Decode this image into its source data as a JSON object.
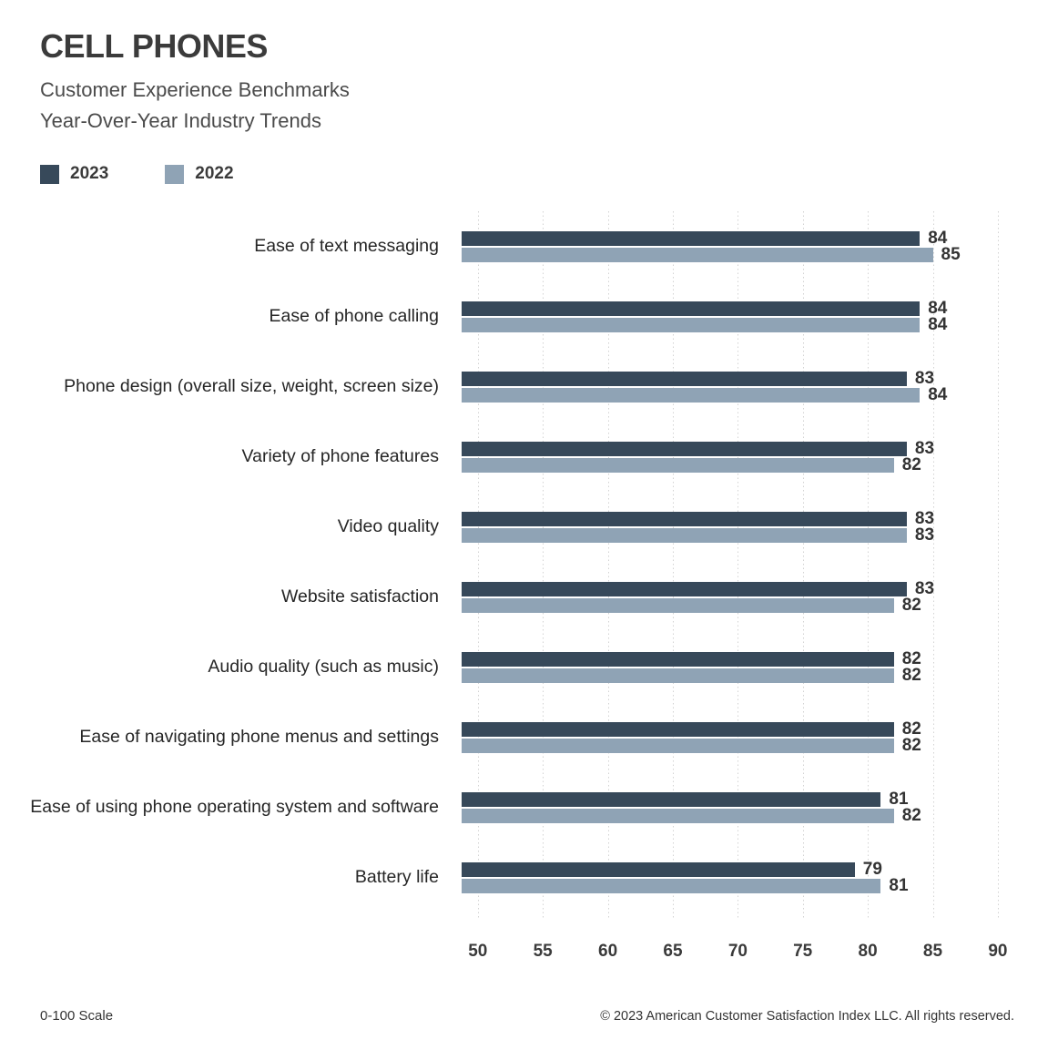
{
  "header": {
    "title": "CELL PHONES",
    "subtitle1": "Customer Experience Benchmarks",
    "subtitle2": "Year-Over-Year Industry Trends"
  },
  "legend": [
    {
      "label": "2023",
      "color": "#37495A"
    },
    {
      "label": "2022",
      "color": "#8FA3B5"
    }
  ],
  "chart_data": {
    "type": "bar",
    "orientation": "horizontal",
    "title": "CELL PHONES",
    "subtitle": "Customer Experience Benchmarks Year-Over-Year Industry Trends",
    "categories": [
      "Ease of text messaging",
      "Ease of phone calling",
      "Phone design (overall size, weight, screen size)",
      "Variety of phone features",
      "Video quality",
      "Website satisfaction",
      "Audio quality (such as music)",
      "Ease of navigating phone menus and settings",
      "Ease of using phone operating system and software",
      "Battery life"
    ],
    "series": [
      {
        "name": "2023",
        "color": "#37495A",
        "values": [
          84,
          84,
          83,
          83,
          83,
          83,
          82,
          82,
          81,
          79
        ]
      },
      {
        "name": "2022",
        "color": "#8FA3B5",
        "values": [
          85,
          84,
          84,
          82,
          83,
          82,
          82,
          82,
          82,
          81
        ]
      }
    ],
    "xticks": [
      50,
      55,
      60,
      65,
      70,
      75,
      80,
      85,
      90
    ],
    "xlim": [
      48.75,
      91.2
    ],
    "grid": "vertical-dotted",
    "gridcolor": "#d3d3d3",
    "value_labels": true,
    "legend_position": "top-left"
  },
  "footer": {
    "scale_note": "0-100 Scale",
    "copyright": "© 2023 American Customer Satisfaction Index LLC. All rights reserved."
  }
}
